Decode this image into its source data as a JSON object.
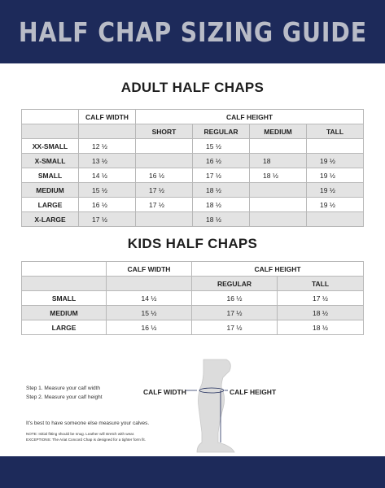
{
  "header": {
    "title": "HALF CHAP SIZING GUIDE"
  },
  "adult": {
    "title": "ADULT HALF CHAPS",
    "calf_width_label": "CALF WIDTH",
    "calf_height_label": "CALF HEIGHT",
    "sub_columns": [
      "SHORT",
      "REGULAR",
      "MEDIUM",
      "TALL"
    ],
    "rows": [
      {
        "size": "XX-SMALL",
        "width": "12 ½",
        "short": "",
        "regular": "15 ½",
        "medium": "",
        "tall": ""
      },
      {
        "size": "X-SMALL",
        "width": "13 ½",
        "short": "",
        "regular": "16 ½",
        "medium": "18",
        "tall": "19 ½"
      },
      {
        "size": "SMALL",
        "width": "14 ½",
        "short": "16 ½",
        "regular": "17 ½",
        "medium": "18 ½",
        "tall": "19 ½"
      },
      {
        "size": "MEDIUM",
        "width": "15 ½",
        "short": "17 ½",
        "regular": "18 ½",
        "medium": "",
        "tall": "19 ½"
      },
      {
        "size": "LARGE",
        "width": "16 ½",
        "short": "17 ½",
        "regular": "18 ½",
        "medium": "",
        "tall": "19 ½"
      },
      {
        "size": "X-LARGE",
        "width": "17 ½",
        "short": "",
        "regular": "18 ½",
        "medium": "",
        "tall": ""
      }
    ]
  },
  "kids": {
    "title": "KIDS HALF CHAPS",
    "calf_width_label": "CALF WIDTH",
    "calf_height_label": "CALF HEIGHT",
    "sub_columns": [
      "REGULAR",
      "TALL"
    ],
    "rows": [
      {
        "size": "SMALL",
        "width": "14 ½",
        "regular": "16 ½",
        "tall": "17 ½"
      },
      {
        "size": "MEDIUM",
        "width": "15 ½",
        "regular": "17 ½",
        "tall": "18 ½"
      },
      {
        "size": "LARGE",
        "width": "16 ½",
        "regular": "17 ½",
        "tall": "18 ½"
      }
    ]
  },
  "instructions": {
    "step1": "Step 1. Measure your calf width",
    "step2": "Step 2. Measure your calf height",
    "tip": "It's best to have someone else measure your calves.",
    "note": "NOTE: Initial fitting should be snug. Leather will stretch with wear.",
    "exceptions": "EXCEPTIONS: The Ariat Concord Chap is designed for a tighter form fit."
  },
  "diagram": {
    "calf_width_label": "CALF WIDTH",
    "calf_height_label": "CALF HEIGHT"
  }
}
